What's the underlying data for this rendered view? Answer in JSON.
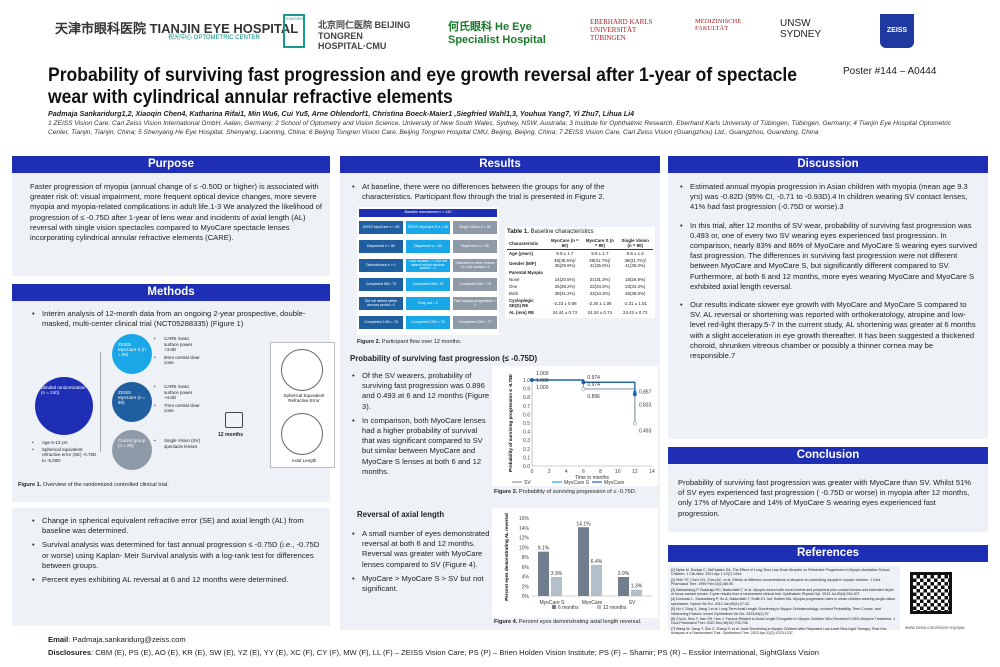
{
  "logos": [
    "天津市眼科医院 TIANJIN EYE HOSPITAL",
    "视光中心 OPTOMETRIC CENTER",
    "TONGREN",
    "北京同仁医院 BEIJING TONGREN HOSPITAL·CMU",
    "何氏眼科 He Eye Specialist Hospital",
    "EBERHARD KARLS UNIVERSITÄT TÜBINGEN",
    "MEDIZINISCHE FAKULTÄT",
    "UNSW SYDNEY",
    "ZEISS"
  ],
  "title": "Probability of surviving fast progression and eye growth reversal after 1-year of spectacle wear with cylindrical annular refractive elements",
  "poster_id": "Poster #144 – A0444",
  "authors": "Padmaja Sankaridurg1,2, Xiaoqin Chen4, Katharina Rifai1, Min Wu6, Cui Yu5, Arne Ohlendorf1, Christina Boeck-Maier1 ,Siegfried Wahl1,3, Youhua Yang7, Yi Zhu7, Lihua Li4",
  "affiliations": "1 ZEISS Vision Care, Carl Zeiss Vision International GmbH, Aalen, Germany; 2 School of Optometry and Vision Science, University of New South Wales, Sydney, NSW, Australia; 3 Institute for Ophthalmic Research, Eberhard Karls University of Tübingen, Tübingen, Germany; 4 Tianjin Eye Hospital Optometric Center, Tianjin, Tianjin, China; 5 Shenyang He Eye Hospital, Shenyang, Liaoning, China; 6 Beijing Tongren Vision Care, Beijing Tongren Hospital CMU, Beijing, Beijing, China; 7 ZEISS Vision Care, Carl Zeiss Vision (Guangzhou) Ltd., Guangzhou, Guandong, China",
  "purpose": {
    "heading": "Purpose",
    "text": "Faster progression of myopia (annual change of ≤ -0.50D or higher) is associated with greater risk of: visual impairment, more frequent optical device changes, more severe myopia and myopia-related complications in adult life.1-3 We analyzed the likelihood of progression of ≤ -0.75D after 1-year of lens wear and incidents of axial length (AL) reversal with single vision spectacles compared to MyoCare spectacle lenses incorporating cylindrical annular refractive elements (CARE)."
  },
  "methods": {
    "heading": "Methods",
    "bullet1": "Interim analysis of 12-month data from an ongoing 2-year prospective, double-masked, multi-center clinical trial (NCT05288335) (Figure 1)",
    "fig1": {
      "rand_label": "Blinded randomization (n = 240)",
      "inclusion": [
        "Age 6-13 yrs",
        "Spherical equivalent refractive error (SE) -0.75D to -5.00D"
      ],
      "groups": [
        {
          "name": "ZEISS MyoCare S (n = 80)",
          "notes": [
            "CARE mean surface power +3.8D",
            "9mm central clear zone"
          ],
          "color": "#1aa7e8"
        },
        {
          "name": "ZEISS MyoCare (n = 80)",
          "notes": [
            "CARE mean surface power +4.6D",
            "7mm central clear zone"
          ],
          "color": "#1f5fa0"
        },
        {
          "name": "Control group (n = 80)",
          "notes": [
            "Single Vision (SV) spectacle lenses"
          ],
          "color": "#8e9aa7"
        }
      ],
      "duration": "12 months",
      "outcomes": [
        "Spherical Equivalent Refractive Error",
        "Axial Length"
      ],
      "caption_label": "Figure 1.",
      "caption": " Overview of the randomized controlled clinical trial."
    },
    "bullets2": [
      "Change in spherical equivalent refractive error (SE) and axial length (AL) from baseline was determined.",
      "Survival analysis was determined for fast annual progression ≤ -0.75D (i.e., -0.75D or worse) using Kaplan- Meir Survival analysis with a log-rank test for differences between groups.",
      "Percent eyes exhibiting AL reversal at 6 and 12 months were determined."
    ]
  },
  "results": {
    "heading": "Results",
    "bullet1": "At baseline, there were no differences between the groups for any of the characteristics. Participant flow through the trial is presented in Figure 2.",
    "fig2": {
      "top": "Baseline assessment n = 240",
      "cols": [
        {
          "color": "#1f5fa0",
          "boxes": [
            "ZEISS MyoCare n = 80",
            "Dispensed n = 80",
            "Discontinued n = 1",
            "Completed 6M= 79",
            "Did not attend within window period =1",
            "Completed 12M = 78"
          ]
        },
        {
          "color": "#1aa7e8",
          "boxes": [
            "ZEISS MyoCare S n = 80",
            "Dispensed n = 80",
            "Lost contact = 1 Did not attend within window period = 1",
            "Completed 6M= 78",
            "Drop out = 2",
            "Completed 12M = 78"
          ]
        },
        {
          "color": "#8e9aa7",
          "boxes": [
            "Single Vision n = 80",
            "Dispensed n = 80",
            "Switched to other lenses =1 Lost contact =1",
            "Completed 6M = 78",
            "Fast myopia progression = 1",
            "Completed 12M = 77"
          ]
        }
      ],
      "caption_label": "Figure 2.",
      "caption": " Participant flow over 12 months."
    },
    "table1": {
      "caption_label": "Table 1.",
      "caption": " Baseline characteristics",
      "headers": [
        "Characteristic",
        "MyoCare (n = 80)",
        "MyoCare S (n = 80)",
        "Single Vision (n = 80)"
      ],
      "rows": [
        [
          "Age (years)",
          "9.9 ± 1.7",
          "9.8 ± 1.7",
          "9.8 ± 1.6"
        ],
        [
          "Gender (M/F)",
          "45(36.6%)/ 35(29.9%)",
          "39(31.7%)/ 41(35.0%)",
          "39(31.7%)/ 41(35.0%)"
        ],
        [
          "Parental Myopia",
          "",
          "",
          ""
        ],
        [
          "None",
          "14(20.5%)",
          "21(31.3%)",
          "18(26.9%)"
        ],
        [
          "One",
          "26(38.2%)",
          "23(34.3%)",
          "23(34.3%)"
        ],
        [
          "Both",
          "28(41.2%)",
          "23(34.3%)",
          "26(38.8%)"
        ],
        [
          "Cycloplegic SE(D) RE",
          "-2.23 ± 0.98",
          "-2.30 ± 1.06",
          "-2.31 ± 1.01"
        ],
        [
          "AL (mm) RE",
          "24.44 ± 0.73",
          "24.34 ± 0.74",
          "24.43 ± 0.73"
        ]
      ]
    },
    "survival_heading": "Probability of surviving fast progression (≤ -0.75D)",
    "survival_bullets": [
      "Of the SV wearers, probability of surviving fast progression was 0.896 and 0.493 at 6 and 12 months (Figure 3).",
      "In comparison, both MyoCare lenses had a higher probability of survival that was significant compared to SV but similar between MyoCare and MyoCare S lenses at both 6 and 12 months."
    ],
    "reversal_heading": "Reversal of axial length",
    "reversal_bullets": [
      "A small number of eyes demonstrated reversal at both 6 and 12 months. Reversal was greater with MyoCare lenses compared to SV (Figure 4).",
      "MyoCare > MyoCare S > SV but not significant."
    ],
    "fig3_caption_label": "Figure 3.",
    "fig3_caption": " Probability of surviving progression of ≤ -0.75D.",
    "fig4_caption_label": "Figure 4.",
    "fig4_caption": " Percent eyes demonstrating axial length reversal."
  },
  "chart_data": [
    {
      "type": "line",
      "xlabel": "Time in months",
      "ylabel": "Probability of surviving progression ≤ -0.75D",
      "xlim": [
        0,
        14
      ],
      "ylim": [
        0,
        1.0
      ],
      "xticks": [
        0,
        2,
        4,
        6,
        8,
        10,
        12,
        14
      ],
      "yticks": [
        "0.0",
        "0.1",
        "0.2",
        "0.3",
        "0.4",
        "0.5",
        "0.6",
        "0.7",
        "0.8",
        "0.9",
        "1.0"
      ],
      "legend": "bottom",
      "series": [
        {
          "name": "SV",
          "color": "#8e9aa7",
          "x": [
            0,
            6,
            12
          ],
          "y": [
            1.0,
            0.896,
            0.493
          ],
          "labels": [
            "1.000",
            "0.896",
            "0.493"
          ]
        },
        {
          "name": "MyoCare S",
          "color": "#1aa7e8",
          "x": [
            0,
            6,
            12
          ],
          "y": [
            1.0,
            0.974,
            0.857
          ],
          "labels": [
            "1.000",
            "0.974",
            "0.857"
          ]
        },
        {
          "name": "MyoCare",
          "color": "#1f5fa0",
          "x": [
            0,
            6,
            12
          ],
          "y": [
            1.0,
            0.974,
            0.833
          ],
          "labels": [
            "1.000",
            "0.974",
            "0.833"
          ]
        }
      ]
    },
    {
      "type": "bar",
      "ylabel": "Percent eyes demonstrating AL reversal",
      "categories": [
        "MyoCare S",
        "MyoCare",
        "SV"
      ],
      "ylim": [
        0,
        16
      ],
      "yticks": [
        "0%",
        "2%",
        "4%",
        "6%",
        "8%",
        "10%",
        "12%",
        "14%",
        "16%"
      ],
      "legend": "bottom",
      "series": [
        {
          "name": "6 months",
          "color": "#6f7d8c",
          "values": [
            9.1,
            14.1,
            3.9
          ],
          "labels": [
            "9.1%",
            "14.1%",
            "3.9%"
          ]
        },
        {
          "name": "12 months",
          "color": "#b3c0cc",
          "values": [
            3.9,
            6.4,
            1.3
          ],
          "labels": [
            "3.9%",
            "6.4%",
            "1.3%"
          ]
        }
      ]
    }
  ],
  "discussion": {
    "heading": "Discussion",
    "bullets": [
      "Estimated annual myopia progression in Asian children with myopia (mean age 9.3 yrs) was -0.82D (95% CI, -0.71 to -0.93D).4 In children wearing SV contact lenses, 41% had fast progression (-0.75D or worse).3",
      "In this trial, after 12 months of SV wear, probability of surviving fast progression was 0.493 or, one of every two SV wearing eyes experienced fast progression. In comparison, nearly 83% and 86% of MyoCare and MyoCare S wearing eyes survived fast progression. The differences in surviving fast progression were not different between MyoCare and MyoCare S, but significantly different compared to SV. Furthermore, at both 6 and 12 months, more eyes wearing MyoCare and MyoCare S exhibited axial length reversal.",
      "Our results indicate slower eye growth with MyoCare and MyoCare S compared to SV. AL reversal or shortening was reported with orthokeratology, atropine and low-level red-light therapy.5-7 In the current study, AL shortening was greater at 6 months with a slight acceleration in eye growth thereafter. It has been suggested a thickened choroid, shrunken vitreous chamber or possibly a thinner cornea may be responsible.7"
    ]
  },
  "conclusion": {
    "heading": "Conclusion",
    "text": "Probability of surviving fast progression was greater with MyoCare than SV. Whilst 51% of SV eyes experienced fast progression ( -0.75D or worse) in myopia after 12 months, only 17% of MyoCare and 14% of MyoCare S wearing eyes experienced fast progression."
  },
  "references": {
    "heading": "References",
    "items": [
      "[1] Mylar M, Dunlap C, McFadden SA. The Effect of Long-Term Low-Dose Atropine on Refractive Progression in Myopic Australian School Children. J Clin Med. 2021 Apr 1;10(7):1444.",
      "[2] Shih YF, Chen CH, Chou AC, et al. Effects of different concentrations of atropine on controlling myopia in myopic children. J Ocul Pharmacol Ther. 1999 Feb;15(1):85-90.",
      "[3] Sankaridurg P, Bakaraju RC, Naduvilath T, et al. Myopia control with novel central and peripheral plus contact lenses and extended depth of focus contact lenses: 2 year results from a randomised clinical trial. Ophthalmic Physiol Opt. 2019 Jul;39(4):294-307.",
      "[4] Donovan L, Sankaridurg P, Ho A, Naduvilath T, Smith EL 3rd, Holden BA. Myopia progression rates in urban children wearing single-vision spectacles. Optom Vis Sci. 2012 Jan;89(1):27-32.",
      "[5] Hu Y, Ding X, Jiang J et al. Long-Term Axial Length Shortening in Myopic Orthokeratology: Incident Probability, Time Course, and Influencing Factors. Invest Ophthalmol Vis Sci. 2023;64(1):37.",
      "[6] Chu A, Sew Y, Han SH, Han J. Factors Related to Axial Length Elongation in Myopic Children Who Received 0.05% Atropine Treatment. J Ocul Pharmacol Ther. 2022 Dec;38(10):703-708.",
      "[7] Wang W, Jiang Y, Zhu Z, Zhang S, et al. Axial Shortening in Myopic Children after Repeated Low-Level Red-Light Therapy: Post Hoc Analysis of a Randomized Trial. Ophthalmol Ther. 2023 Apr;12(2):1223-1237."
    ],
    "qr_url": "www.zeiss.com/vision-myopia"
  },
  "footer": {
    "email_label": "Email",
    "email": ": Padmaja.sankaridurg@zeiss.com",
    "disclosures_label": "Disclosures",
    "disclosures": ": CBM (E), PS (E), AO (E), KR (E), SW (E), YZ (E), YY (E), XC (F), CY (F), MW (F), LL (F) – ZEISS Vision Care; PS (P) – Brien Holden Vision Institute; PS (F) – Shamir; PS (R) – Essilor International, SightGlass Vision"
  },
  "colors": {
    "header": "#1e2fb5",
    "panel": "#eef2f7",
    "myocare": "#1f5fa0",
    "myocare_s": "#1aa7e8",
    "sv": "#8e9aa7"
  }
}
